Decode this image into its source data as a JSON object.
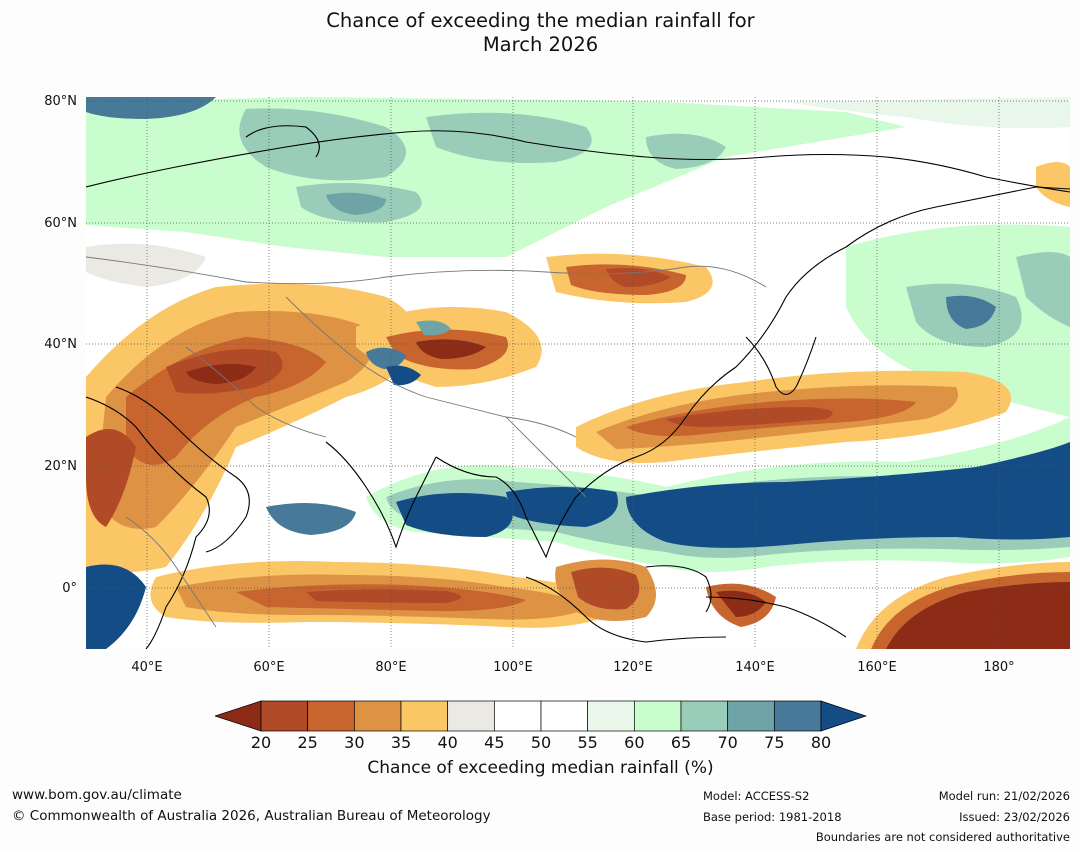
{
  "title": {
    "line1": "Chance of exceeding the median rainfall for",
    "line2": "March 2026"
  },
  "map": {
    "lat_labels": [
      "80°N",
      "60°N",
      "40°N",
      "20°N",
      "0°"
    ],
    "lon_labels": [
      "40°E",
      "60°E",
      "80°E",
      "100°E",
      "120°E",
      "140°E",
      "160°E",
      "180°"
    ],
    "lon_range": [
      30,
      191
    ],
    "lat_range": [
      -10,
      80
    ]
  },
  "colorbar": {
    "label": "Chance of exceeding median rainfall (%)",
    "ticks": [
      "20",
      "25",
      "30",
      "35",
      "40",
      "45",
      "50",
      "55",
      "60",
      "65",
      "70",
      "75",
      "80"
    ],
    "colors": [
      "#8c2b16",
      "#b04a27",
      "#c8652f",
      "#de9244",
      "#fbc666",
      "#ebe9e4",
      "#ffffff",
      "#ffffff",
      "#e9f7ea",
      "#c9fdcd",
      "#99ccb9",
      "#6ea4a6",
      "#467a98",
      "#144d85"
    ]
  },
  "footer": {
    "website": "www.bom.gov.au/climate",
    "copyright": "© Commonwealth of Australia 2026, Australian Bureau of Meteorology",
    "model": "Model: ACCESS-S2",
    "base_period": "Base period: 1981-2018",
    "model_run": "Model run: 21/02/2026",
    "issued": "Issued: 23/02/2026",
    "disclaimer": "Boundaries are not considered authoritative"
  }
}
